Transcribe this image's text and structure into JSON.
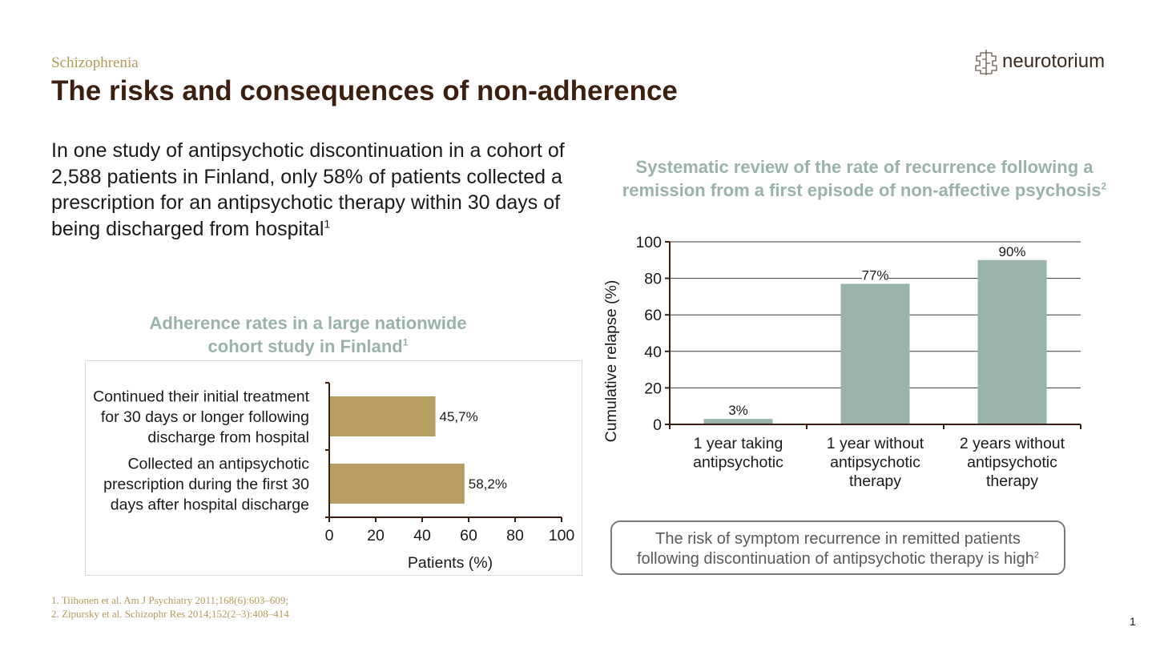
{
  "header": {
    "category": "Schizophrenia",
    "title": "The risks and consequences of non-adherence",
    "logo_text": "neurotorium"
  },
  "intro": {
    "text": "In one study of antipsychotic discontinuation in a cohort of 2,588 patients in Finland, only 58% of patients collected a prescription for an antipsychotic therapy within 30 days of being discharged from hospital",
    "ref": "1"
  },
  "left_chart": {
    "subtitle_line1": "Adherence rates in a large nationwide",
    "subtitle_line2": "cohort study in Finland",
    "subtitle_ref": "1"
  },
  "right_chart": {
    "subtitle_line1": "Systematic review of the rate of recurrence following a",
    "subtitle_line2": "remission from a first episode of non-affective psychosis",
    "subtitle_ref": "2"
  },
  "callout": {
    "line1": "The risk of symptom recurrence in remitted patients",
    "line2": "following discontinuation of antipsychotic therapy is high",
    "ref": "2"
  },
  "references": [
    "1. Tiihonen et al. Am J Psychiatry 2011;168(6):603–609;",
    "2. Zipursky et al. Schizophr Res 2014;152(2–3):408–414"
  ],
  "page_number": "1",
  "colors": {
    "gold": "#b79e63",
    "sage": "#9ab3aa",
    "title": "#3d1f0f",
    "axis": "#3d1f0f"
  },
  "chart_data": [
    {
      "type": "bar",
      "orientation": "horizontal",
      "title": "Adherence rates in a large nationwide cohort study in Finland",
      "categories": [
        [
          "Continued their initial treatment",
          "for 30 days or longer following",
          "discharge from hospital"
        ],
        [
          "Collected an antipsychotic",
          "prescription during the first 30",
          "days after hospital discharge"
        ]
      ],
      "values": [
        45.7,
        58.2
      ],
      "value_labels": [
        "45,7%",
        "58,2%"
      ],
      "xlabel": "Patients (%)",
      "xlim": [
        0,
        100
      ],
      "xticks": [
        0,
        20,
        40,
        60,
        80,
        100
      ],
      "grid": false
    },
    {
      "type": "bar",
      "orientation": "vertical",
      "title": "Systematic review of the rate of recurrence following a remission from a first episode of non-affective psychosis",
      "categories": [
        [
          "1 year taking",
          "antipsychotic"
        ],
        [
          "1 year without",
          "antipsychotic",
          "therapy"
        ],
        [
          "2 years without",
          "antipsychotic",
          "therapy"
        ]
      ],
      "values": [
        3,
        77,
        90
      ],
      "value_labels": [
        "3%",
        "77%",
        "90%"
      ],
      "ylabel": "Cumulative relapse (%)",
      "ylim": [
        0,
        100
      ],
      "yticks": [
        0,
        20,
        40,
        60,
        80,
        100
      ],
      "grid": true
    }
  ]
}
